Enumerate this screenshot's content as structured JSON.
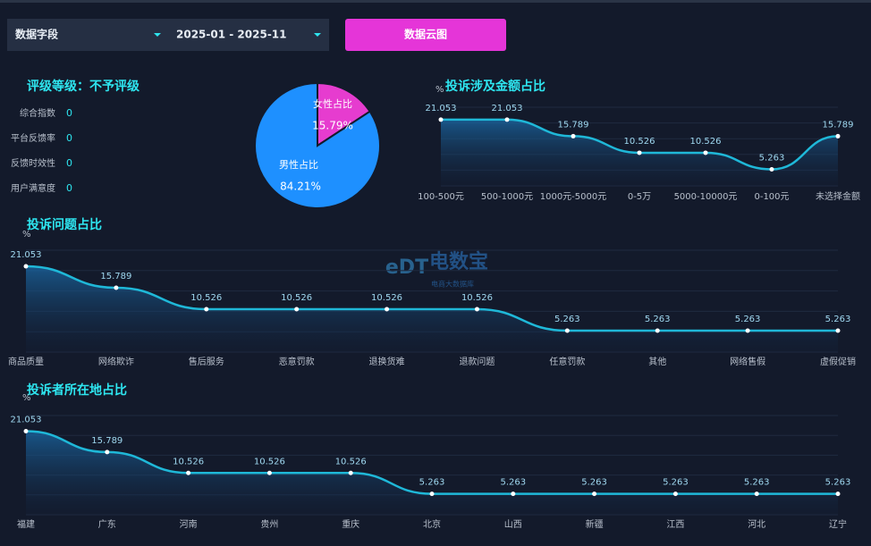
{
  "controls": {
    "field_select": "数据字段",
    "date_range": "2025-01 - 2025-11",
    "button": "数据云图"
  },
  "rating": {
    "title": "评级等级：不予评级",
    "items": [
      {
        "label": "综合指数",
        "value": 0
      },
      {
        "label": "平台反馈率",
        "value": 0
      },
      {
        "label": "反馈时效性",
        "value": 0
      },
      {
        "label": "用户满意度",
        "value": 0
      }
    ]
  },
  "watermark": {
    "logo": "eDT",
    "name": "电数宝",
    "sub": "电商大数据库"
  },
  "chart_data": [
    {
      "type": "pie",
      "categories": [
        "女性占比",
        "男性占比"
      ],
      "values": [
        15.79,
        84.21
      ],
      "value_labels": [
        "15.79%",
        "84.21%"
      ],
      "colors": [
        "#e63ccf",
        "#1e90ff"
      ]
    },
    {
      "type": "line",
      "title": "投诉涉及金额占比",
      "y_label": "%",
      "color": "#1fb8d8",
      "categories": [
        "100-500元",
        "500-1000元",
        "1000元-5000元",
        "0-5万",
        "5000-10000元",
        "0-100元",
        "未选择金额"
      ],
      "values": [
        21.053,
        21.053,
        15.789,
        10.526,
        10.526,
        5.263,
        15.789
      ],
      "ylim": [
        0,
        25
      ],
      "grid": true
    },
    {
      "type": "line",
      "title": "投诉问题占比",
      "y_label": "%",
      "color": "#1fb8d8",
      "categories": [
        "商品质量",
        "网络欺诈",
        "售后服务",
        "恶意罚款",
        "退换货难",
        "退款问题",
        "任意罚款",
        "其他",
        "网络售假",
        "虚假促销"
      ],
      "values": [
        21.053,
        15.789,
        10.526,
        10.526,
        10.526,
        10.526,
        5.263,
        5.263,
        5.263,
        5.263
      ],
      "ylim": [
        0,
        25
      ],
      "grid": true
    },
    {
      "type": "line",
      "title": "投诉者所在地占比",
      "y_label": "%",
      "color": "#1fb8d8",
      "categories": [
        "福建",
        "广东",
        "河南",
        "贵州",
        "重庆",
        "北京",
        "山西",
        "新疆",
        "江西",
        "河北",
        "辽宁"
      ],
      "values": [
        21.053,
        15.789,
        10.526,
        10.526,
        10.526,
        5.263,
        5.263,
        5.263,
        5.263,
        5.263,
        5.263
      ],
      "ylim": [
        0,
        25
      ],
      "grid": true
    }
  ]
}
